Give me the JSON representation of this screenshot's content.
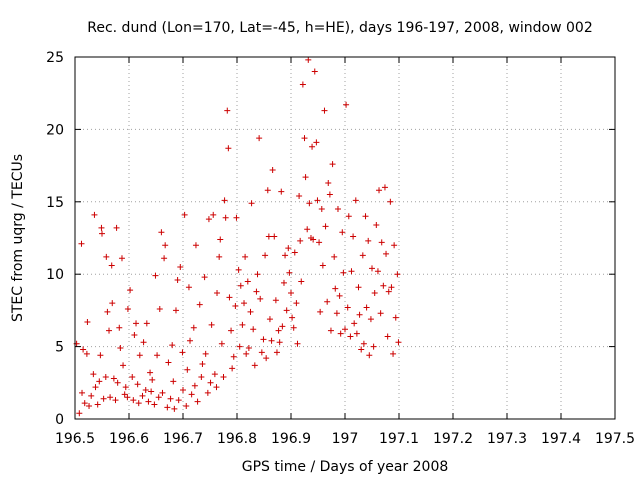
{
  "chart_data": {
    "type": "scatter",
    "title": "Rec. dund (Lon=170, Lat=-45, h=HE), days 196-197, 2008, window 002",
    "xlabel": "GPS time / Days of year 2008",
    "ylabel": "STEC from uqrg / TECUs",
    "xlim": [
      196.5,
      197.5
    ],
    "ylim": [
      0,
      25
    ],
    "xticks": [
      "196.5",
      "196.6",
      "196.7",
      "196.8",
      "196.9",
      "197",
      "197.1",
      "197.2",
      "197.3",
      "197.4",
      "197.5"
    ],
    "yticks": [
      "0",
      "5",
      "10",
      "15",
      "20",
      "25"
    ],
    "grid": true,
    "marker": "plus",
    "color": "#cc0000",
    "points": [
      [
        196.503,
        5.2
      ],
      [
        196.508,
        0.4
      ],
      [
        196.512,
        12.1
      ],
      [
        196.513,
        1.8
      ],
      [
        196.515,
        4.8
      ],
      [
        196.518,
        1.1
      ],
      [
        196.522,
        4.5
      ],
      [
        196.523,
        6.7
      ],
      [
        196.526,
        0.9
      ],
      [
        196.53,
        1.6
      ],
      [
        196.534,
        3.1
      ],
      [
        196.536,
        14.1
      ],
      [
        196.538,
        2.2
      ],
      [
        196.542,
        1.0
      ],
      [
        196.545,
        2.6
      ],
      [
        196.547,
        4.4
      ],
      [
        196.549,
        13.2
      ],
      [
        196.55,
        12.8
      ],
      [
        196.553,
        1.4
      ],
      [
        196.557,
        2.9
      ],
      [
        196.558,
        11.2
      ],
      [
        196.56,
        7.4
      ],
      [
        196.563,
        6.1
      ],
      [
        196.565,
        1.5
      ],
      [
        196.568,
        10.6
      ],
      [
        196.569,
        8.0
      ],
      [
        196.572,
        2.8
      ],
      [
        196.575,
        1.3
      ],
      [
        196.577,
        13.2
      ],
      [
        196.579,
        2.5
      ],
      [
        196.582,
        6.3
      ],
      [
        196.584,
        4.9
      ],
      [
        196.587,
        11.1
      ],
      [
        196.589,
        3.7
      ],
      [
        196.592,
        1.7
      ],
      [
        196.594,
        2.2
      ],
      [
        196.597,
        1.5
      ],
      [
        196.598,
        7.6
      ],
      [
        196.602,
        8.9
      ],
      [
        196.606,
        2.9
      ],
      [
        196.608,
        1.3
      ],
      [
        196.61,
        5.8
      ],
      [
        196.613,
        6.6
      ],
      [
        196.616,
        2.4
      ],
      [
        196.618,
        1.1
      ],
      [
        196.62,
        4.4
      ],
      [
        196.625,
        1.6
      ],
      [
        196.627,
        5.3
      ],
      [
        196.631,
        2.0
      ],
      [
        196.633,
        6.6
      ],
      [
        196.636,
        1.2
      ],
      [
        196.639,
        3.2
      ],
      [
        196.641,
        1.9
      ],
      [
        196.643,
        2.7
      ],
      [
        196.647,
        1.0
      ],
      [
        196.649,
        9.9
      ],
      [
        196.652,
        4.4
      ],
      [
        196.655,
        1.5
      ],
      [
        196.657,
        7.6
      ],
      [
        196.66,
        12.9
      ],
      [
        196.662,
        1.8
      ],
      [
        196.665,
        11.1
      ],
      [
        196.667,
        12.0
      ],
      [
        196.671,
        0.8
      ],
      [
        196.673,
        3.9
      ],
      [
        196.677,
        1.4
      ],
      [
        196.68,
        5.1
      ],
      [
        196.682,
        2.6
      ],
      [
        196.684,
        0.7
      ],
      [
        196.687,
        7.5
      ],
      [
        196.69,
        9.6
      ],
      [
        196.692,
        1.3
      ],
      [
        196.695,
        10.5
      ],
      [
        196.699,
        4.6
      ],
      [
        196.7,
        2.0
      ],
      [
        196.703,
        14.1
      ],
      [
        196.706,
        0.9
      ],
      [
        196.708,
        3.4
      ],
      [
        196.711,
        9.1
      ],
      [
        196.713,
        5.4
      ],
      [
        196.716,
        1.7
      ],
      [
        196.72,
        6.3
      ],
      [
        196.722,
        2.3
      ],
      [
        196.724,
        12.0
      ],
      [
        196.727,
        1.2
      ],
      [
        196.731,
        7.9
      ],
      [
        196.734,
        2.9
      ],
      [
        196.736,
        3.8
      ],
      [
        196.74,
        9.8
      ],
      [
        196.742,
        4.5
      ],
      [
        196.746,
        1.8
      ],
      [
        196.748,
        13.8
      ],
      [
        196.751,
        2.5
      ],
      [
        196.753,
        6.5
      ],
      [
        196.756,
        14.1
      ],
      [
        196.759,
        3.1
      ],
      [
        196.762,
        2.2
      ],
      [
        196.763,
        8.7
      ],
      [
        196.767,
        11.2
      ],
      [
        196.769,
        12.4
      ],
      [
        196.772,
        5.2
      ],
      [
        196.775,
        2.9
      ],
      [
        196.777,
        15.1
      ],
      [
        196.779,
        13.9
      ],
      [
        196.782,
        21.3
      ],
      [
        196.784,
        18.7
      ],
      [
        196.786,
        8.4
      ],
      [
        196.789,
        6.1
      ],
      [
        196.791,
        3.5
      ],
      [
        196.794,
        4.3
      ],
      [
        196.797,
        7.8
      ],
      [
        196.799,
        13.9
      ],
      [
        196.803,
        10.3
      ],
      [
        196.805,
        5.0
      ],
      [
        196.807,
        9.2
      ],
      [
        196.81,
        6.5
      ],
      [
        196.813,
        8.0
      ],
      [
        196.815,
        11.2
      ],
      [
        196.817,
        4.5
      ],
      [
        196.82,
        9.5
      ],
      [
        196.822,
        4.9
      ],
      [
        196.825,
        7.4
      ],
      [
        196.827,
        14.9
      ],
      [
        196.83,
        6.2
      ],
      [
        196.833,
        3.7
      ],
      [
        196.836,
        8.8
      ],
      [
        196.838,
        10.0
      ],
      [
        196.841,
        19.4
      ],
      [
        196.843,
        8.3
      ],
      [
        196.846,
        4.6
      ],
      [
        196.849,
        5.5
      ],
      [
        196.852,
        11.3
      ],
      [
        196.854,
        4.2
      ],
      [
        196.857,
        15.8
      ],
      [
        196.859,
        12.6
      ],
      [
        196.861,
        6.9
      ],
      [
        196.864,
        5.4
      ],
      [
        196.866,
        17.2
      ],
      [
        196.869,
        12.6
      ],
      [
        196.872,
        8.2
      ],
      [
        196.874,
        4.6
      ],
      [
        196.877,
        6.1
      ],
      [
        196.879,
        5.3
      ],
      [
        196.882,
        15.7
      ],
      [
        196.884,
        6.4
      ],
      [
        196.887,
        9.4
      ],
      [
        196.889,
        11.3
      ],
      [
        196.892,
        7.5
      ],
      [
        196.895,
        11.8
      ],
      [
        196.897,
        10.1
      ],
      [
        196.9,
        8.7
      ],
      [
        196.902,
        7.0
      ],
      [
        196.905,
        6.3
      ],
      [
        196.907,
        11.5
      ],
      [
        196.91,
        8.0
      ],
      [
        196.912,
        5.2
      ],
      [
        196.915,
        15.4
      ],
      [
        196.917,
        12.3
      ],
      [
        196.919,
        9.5
      ],
      [
        196.922,
        23.1
      ],
      [
        196.925,
        19.4
      ],
      [
        196.927,
        16.7
      ],
      [
        196.93,
        13.1
      ],
      [
        196.932,
        24.8
      ],
      [
        196.934,
        14.9
      ],
      [
        196.937,
        12.5
      ],
      [
        196.939,
        18.8
      ],
      [
        196.941,
        12.4
      ],
      [
        196.944,
        24.0
      ],
      [
        196.947,
        19.1
      ],
      [
        196.949,
        15.1
      ],
      [
        196.952,
        12.2
      ],
      [
        196.954,
        7.4
      ],
      [
        196.957,
        14.5
      ],
      [
        196.959,
        10.6
      ],
      [
        196.962,
        21.3
      ],
      [
        196.964,
        13.3
      ],
      [
        196.967,
        8.1
      ],
      [
        196.969,
        16.3
      ],
      [
        196.972,
        15.5
      ],
      [
        196.974,
        6.1
      ],
      [
        196.977,
        17.6
      ],
      [
        196.98,
        11.2
      ],
      [
        196.982,
        9.0
      ],
      [
        196.985,
        7.3
      ],
      [
        196.987,
        14.5
      ],
      [
        196.99,
        8.5
      ],
      [
        196.992,
        5.9
      ],
      [
        196.995,
        12.9
      ],
      [
        196.997,
        10.1
      ],
      [
        197.0,
        6.2
      ],
      [
        197.002,
        21.7
      ],
      [
        197.005,
        7.7
      ],
      [
        197.007,
        14.0
      ],
      [
        197.01,
        5.7
      ],
      [
        197.012,
        10.2
      ],
      [
        197.015,
        12.6
      ],
      [
        197.017,
        6.6
      ],
      [
        197.02,
        15.1
      ],
      [
        197.022,
        5.9
      ],
      [
        197.025,
        9.1
      ],
      [
        197.027,
        7.2
      ],
      [
        197.03,
        4.8
      ],
      [
        197.033,
        11.3
      ],
      [
        197.035,
        5.2
      ],
      [
        197.038,
        14.0
      ],
      [
        197.04,
        7.7
      ],
      [
        197.043,
        12.3
      ],
      [
        197.045,
        4.4
      ],
      [
        197.048,
        6.9
      ],
      [
        197.05,
        10.4
      ],
      [
        197.053,
        5.0
      ],
      [
        197.055,
        8.7
      ],
      [
        197.058,
        13.4
      ],
      [
        197.061,
        10.2
      ],
      [
        197.063,
        15.8
      ],
      [
        197.066,
        7.3
      ],
      [
        197.068,
        12.2
      ],
      [
        197.071,
        9.2
      ],
      [
        197.074,
        16.0
      ],
      [
        197.076,
        11.4
      ],
      [
        197.079,
        5.7
      ],
      [
        197.081,
        8.8
      ],
      [
        197.084,
        15.0
      ],
      [
        197.086,
        9.1
      ],
      [
        197.089,
        4.5
      ],
      [
        197.091,
        12.0
      ],
      [
        197.094,
        7.0
      ],
      [
        197.097,
        10.0
      ],
      [
        197.099,
        5.3
      ]
    ]
  }
}
